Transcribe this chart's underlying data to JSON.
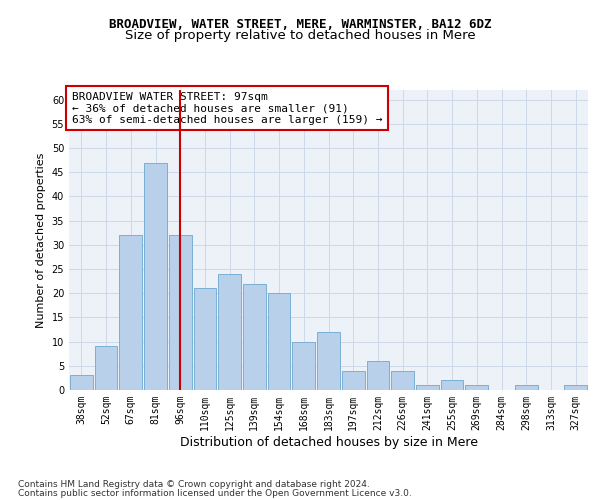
{
  "title1": "BROADVIEW, WATER STREET, MERE, WARMINSTER, BA12 6DZ",
  "title2": "Size of property relative to detached houses in Mere",
  "xlabel": "Distribution of detached houses by size in Mere",
  "ylabel": "Number of detached properties",
  "categories": [
    "38sqm",
    "52sqm",
    "67sqm",
    "81sqm",
    "96sqm",
    "110sqm",
    "125sqm",
    "139sqm",
    "154sqm",
    "168sqm",
    "183sqm",
    "197sqm",
    "212sqm",
    "226sqm",
    "241sqm",
    "255sqm",
    "269sqm",
    "284sqm",
    "298sqm",
    "313sqm",
    "327sqm"
  ],
  "values": [
    3,
    9,
    32,
    47,
    32,
    21,
    24,
    22,
    20,
    10,
    12,
    4,
    6,
    4,
    1,
    2,
    1,
    0,
    1,
    0,
    1
  ],
  "bar_color": "#b8d0ea",
  "bar_edge_color": "#7aafd4",
  "property_line_color": "#cc0000",
  "property_line_index": 4,
  "annotation_line1": "BROADVIEW WATER STREET: 97sqm",
  "annotation_line2": "← 36% of detached houses are smaller (91)",
  "annotation_line3": "63% of semi-detached houses are larger (159) →",
  "annotation_box_edge_color": "#cc0000",
  "ylim": [
    0,
    62
  ],
  "yticks": [
    0,
    5,
    10,
    15,
    20,
    25,
    30,
    35,
    40,
    45,
    50,
    55,
    60
  ],
  "grid_color": "#ccd8e8",
  "background_color": "#edf2f9",
  "footer_line1": "Contains HM Land Registry data © Crown copyright and database right 2024.",
  "footer_line2": "Contains public sector information licensed under the Open Government Licence v3.0.",
  "title1_fontsize": 9,
  "title2_fontsize": 9.5,
  "xlabel_fontsize": 9,
  "ylabel_fontsize": 8,
  "tick_fontsize": 7,
  "annotation_fontsize": 8,
  "footer_fontsize": 6.5
}
